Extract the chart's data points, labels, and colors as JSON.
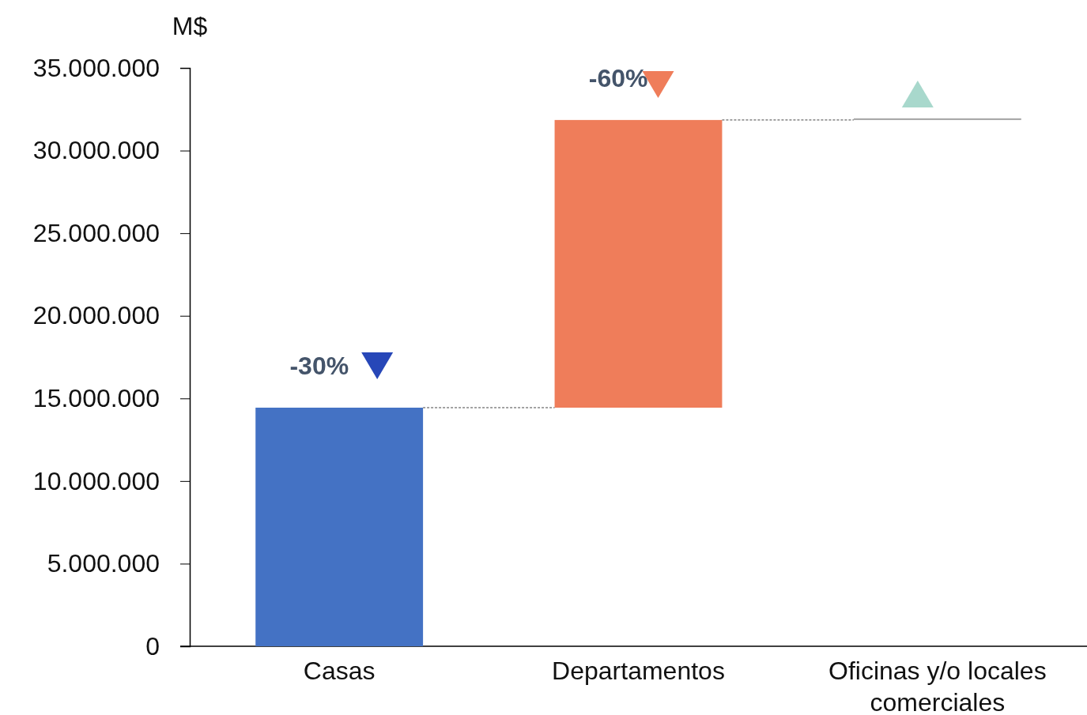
{
  "chart_data": {
    "type": "bar",
    "ylabel": "M$",
    "categories": [
      "Casas",
      "Departamentos",
      "Oficinas y/o locales comerciales"
    ],
    "values": [
      14440000,
      17410000,
      100000
    ],
    "base": [
      0,
      14440000,
      31850000
    ],
    "colors": [
      "#4472c4",
      "#ef7d5a",
      "#a5a5a5"
    ],
    "ylim": [
      0,
      35000000
    ],
    "yticks": [
      0,
      {
        "value": 5000000,
        "label": "5.000.000"
      },
      {
        "value": 10000000,
        "label": "10.000.000"
      },
      {
        "value": 15000000,
        "label": "15.000.000"
      },
      {
        "value": 20000000,
        "label": "20.000.000"
      },
      {
        "value": 25000000,
        "label": "25.000.000"
      },
      {
        "value": 30000000,
        "label": "30.000.000"
      },
      {
        "value": 35000000,
        "label": "35.000.000"
      }
    ],
    "grid": false,
    "annotations": [
      "-30%",
      "-60%"
    ]
  }
}
